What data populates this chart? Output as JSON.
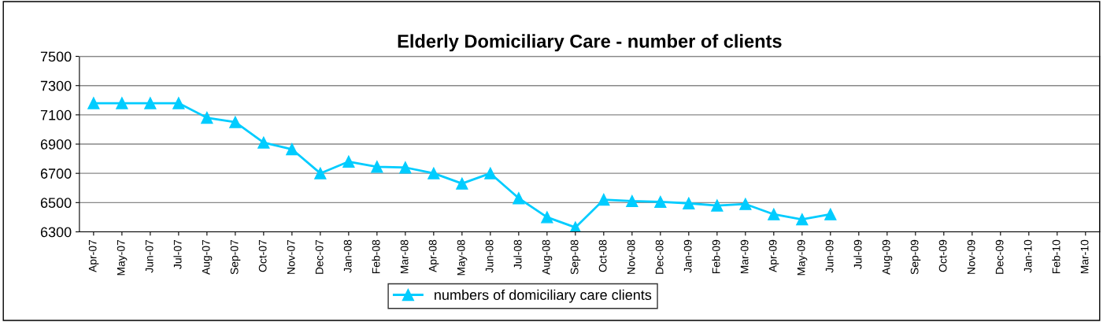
{
  "chart_data": {
    "type": "line",
    "title": "Elderly Domiciliary Care - number of clients",
    "categories": [
      "Apr-07",
      "May-07",
      "Jun-07",
      "Jul-07",
      "Aug-07",
      "Sep-07",
      "Oct-07",
      "Nov-07",
      "Dec-07",
      "Jan-08",
      "Feb-08",
      "Mar-08",
      "Apr-08",
      "May-08",
      "Jun-08",
      "Jul-08",
      "Aug-08",
      "Sep-08",
      "Oct-08",
      "Nov-08",
      "Dec-08",
      "Jan-09",
      "Feb-09",
      "Mar-09",
      "Apr-09",
      "May-09",
      "Jun-09",
      "Jul-09",
      "Aug-09",
      "Sep-09",
      "Oct-09",
      "Nov-09",
      "Dec-09",
      "Jan-10",
      "Feb-10",
      "Mar-10"
    ],
    "series": [
      {
        "name": "numbers of domiciliary care clients",
        "color": "#00ccff",
        "values": [
          7180,
          7180,
          7180,
          7180,
          7080,
          7050,
          6910,
          6865,
          6700,
          6780,
          6745,
          6740,
          6700,
          6630,
          6700,
          6530,
          6400,
          6330,
          6520,
          6510,
          6505,
          6495,
          6480,
          6490,
          6420,
          6385,
          6420,
          null,
          null,
          null,
          null,
          null,
          null,
          null,
          null,
          null
        ]
      }
    ],
    "ylim": [
      6300,
      7500
    ],
    "yticks": [
      6300,
      6500,
      6700,
      6900,
      7100,
      7300,
      7500
    ],
    "grid": "y",
    "legend": "bottom",
    "marker": "triangle",
    "line_style": "solid"
  }
}
